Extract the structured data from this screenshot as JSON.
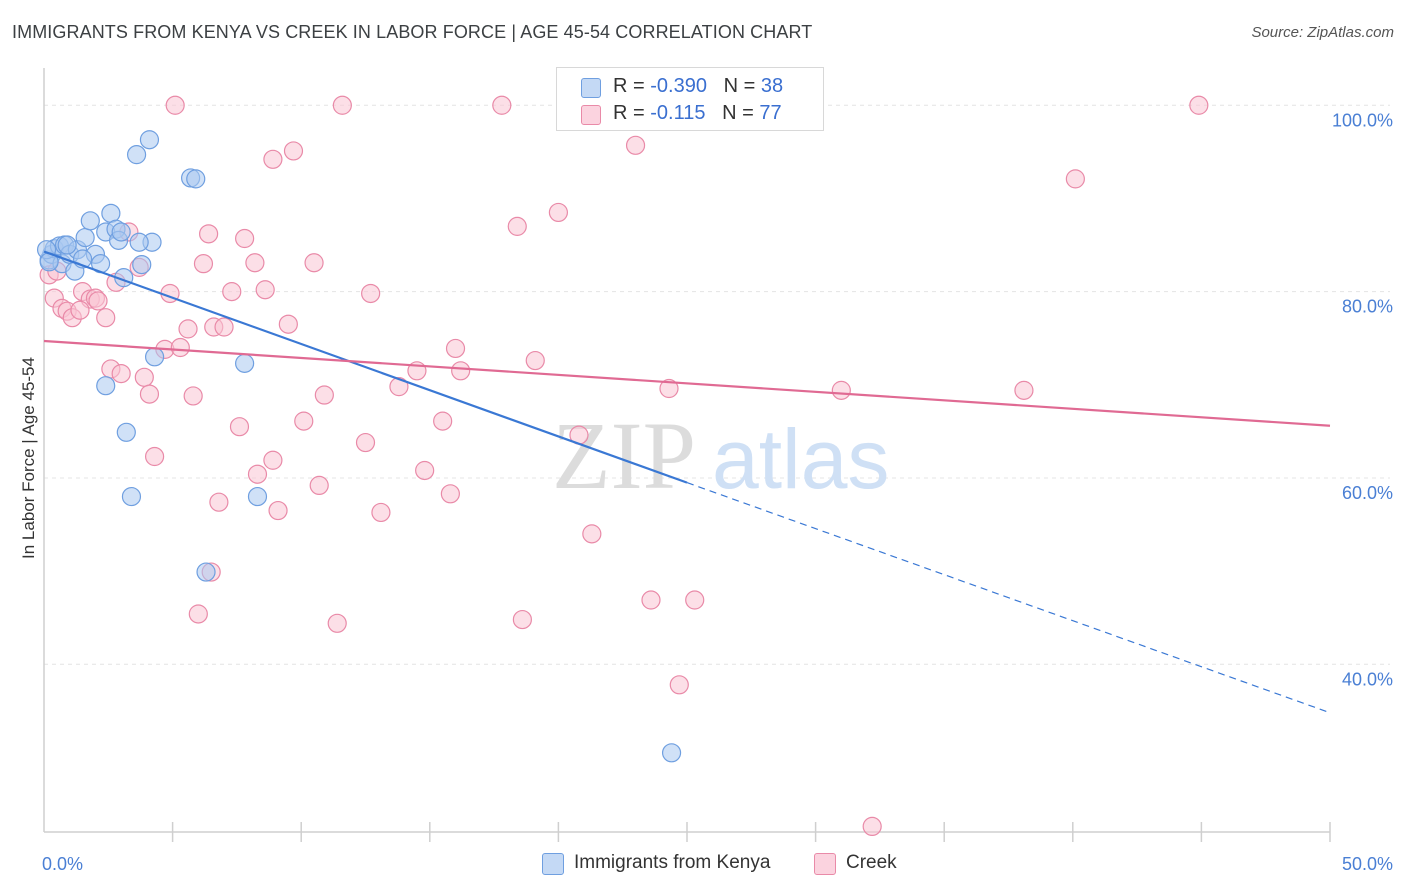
{
  "title": "IMMIGRANTS FROM KENYA VS CREEK IN LABOR FORCE | AGE 45-54 CORRELATION CHART",
  "source": "Source: ZipAtlas.com",
  "watermark": {
    "bold": "ZIP",
    "light": "atlas"
  },
  "legend": {
    "rows": [
      {
        "r_label": "R = ",
        "r_value": "-0.390",
        "n_label": "N = ",
        "n_value": "38",
        "color": "#a9c8f0",
        "border": "#6f9fe0"
      },
      {
        "r_label": "R = ",
        "r_value": "-0.115",
        "n_label": "N = ",
        "n_value": "77",
        "color": "#f9c4d4",
        "border": "#e98aa8"
      }
    ]
  },
  "bottom_legend": [
    {
      "label": "Immigrants from Kenya",
      "color": "#a9c8f0",
      "border": "#6f9fe0"
    },
    {
      "label": "Creek",
      "color": "#f9c4d4",
      "border": "#e98aa8"
    }
  ],
  "chart_data": {
    "type": "scatter",
    "xlabel": "",
    "ylabel": "In Labor Force | Age 45-54",
    "xlim": [
      0,
      50
    ],
    "ylim": [
      22,
      104
    ],
    "x_tick_labels": [
      "0.0%",
      "50.0%"
    ],
    "y_ticks": [
      40,
      60,
      80,
      100
    ],
    "y_tick_labels": [
      "40.0%",
      "60.0%",
      "80.0%",
      "100.0%"
    ],
    "grid": true,
    "series": [
      {
        "name": "Immigrants from Kenya",
        "color": "#6f9fe0",
        "fill": "#a9c8f0",
        "points": [
          [
            0.2,
            83.4
          ],
          [
            0.3,
            84.0
          ],
          [
            0.4,
            84.6
          ],
          [
            0.6,
            84.9
          ],
          [
            0.7,
            83.0
          ],
          [
            0.8,
            85.0
          ],
          [
            1.0,
            84.0
          ],
          [
            1.2,
            82.2
          ],
          [
            1.3,
            84.5
          ],
          [
            1.6,
            85.8
          ],
          [
            1.8,
            87.6
          ],
          [
            2.0,
            84.0
          ],
          [
            2.2,
            83.0
          ],
          [
            2.4,
            69.9
          ],
          [
            2.4,
            86.4
          ],
          [
            2.6,
            88.4
          ],
          [
            2.8,
            86.7
          ],
          [
            2.9,
            85.5
          ],
          [
            3.0,
            86.4
          ],
          [
            3.1,
            81.5
          ],
          [
            3.2,
            64.9
          ],
          [
            3.4,
            58.0
          ],
          [
            3.6,
            94.7
          ],
          [
            3.8,
            82.9
          ],
          [
            4.1,
            96.3
          ],
          [
            4.2,
            85.3
          ],
          [
            4.3,
            73.0
          ],
          [
            5.7,
            92.2
          ],
          [
            5.9,
            92.1
          ],
          [
            6.3,
            49.9
          ],
          [
            7.8,
            72.3
          ],
          [
            8.3,
            58.0
          ],
          [
            24.4,
            30.5
          ],
          [
            0.1,
            84.5
          ],
          [
            0.2,
            83.2
          ],
          [
            1.5,
            83.5
          ],
          [
            0.9,
            85.0
          ],
          [
            3.7,
            85.3
          ]
        ],
        "trend": {
          "x0": 0,
          "y0": 84.3,
          "x1": 25,
          "y1": 59.5,
          "dash_to_x": 50,
          "dash_to_y": 34.8
        }
      },
      {
        "name": "Creek",
        "color": "#e98aa8",
        "fill": "#f9c4d4",
        "points": [
          [
            0.2,
            81.8
          ],
          [
            0.4,
            79.3
          ],
          [
            0.7,
            78.2
          ],
          [
            0.9,
            77.9
          ],
          [
            1.1,
            77.2
          ],
          [
            1.5,
            80.0
          ],
          [
            1.8,
            79.2
          ],
          [
            2.0,
            79.3
          ],
          [
            2.4,
            77.2
          ],
          [
            2.6,
            71.7
          ],
          [
            2.8,
            81.0
          ],
          [
            3.0,
            71.2
          ],
          [
            3.3,
            86.4
          ],
          [
            3.7,
            82.6
          ],
          [
            3.9,
            70.8
          ],
          [
            4.1,
            69.0
          ],
          [
            4.3,
            62.3
          ],
          [
            4.7,
            73.8
          ],
          [
            4.9,
            79.8
          ],
          [
            5.3,
            74.0
          ],
          [
            5.6,
            76.0
          ],
          [
            5.8,
            68.8
          ],
          [
            6.0,
            45.4
          ],
          [
            6.2,
            83.0
          ],
          [
            6.5,
            49.9
          ],
          [
            6.6,
            76.2
          ],
          [
            6.8,
            57.4
          ],
          [
            7.0,
            76.2
          ],
          [
            7.3,
            80.0
          ],
          [
            7.6,
            65.5
          ],
          [
            7.8,
            85.7
          ],
          [
            8.2,
            83.1
          ],
          [
            8.3,
            60.4
          ],
          [
            8.6,
            80.2
          ],
          [
            8.9,
            61.9
          ],
          [
            8.9,
            94.2
          ],
          [
            9.1,
            56.5
          ],
          [
            9.5,
            76.5
          ],
          [
            9.7,
            95.1
          ],
          [
            10.1,
            66.1
          ],
          [
            10.5,
            83.1
          ],
          [
            10.7,
            59.2
          ],
          [
            10.9,
            68.9
          ],
          [
            11.4,
            44.4
          ],
          [
            11.6,
            100.0
          ],
          [
            12.5,
            63.8
          ],
          [
            12.7,
            79.8
          ],
          [
            13.1,
            56.3
          ],
          [
            13.8,
            69.8
          ],
          [
            14.5,
            71.5
          ],
          [
            14.8,
            60.8
          ],
          [
            15.5,
            66.1
          ],
          [
            15.8,
            58.3
          ],
          [
            16.0,
            73.9
          ],
          [
            16.2,
            71.5
          ],
          [
            17.8,
            100.0
          ],
          [
            18.4,
            87.0
          ],
          [
            18.6,
            44.8
          ],
          [
            19.1,
            72.6
          ],
          [
            20.0,
            88.5
          ],
          [
            20.8,
            64.6
          ],
          [
            21.3,
            54.0
          ],
          [
            23.0,
            95.7
          ],
          [
            23.6,
            46.9
          ],
          [
            24.3,
            69.6
          ],
          [
            24.7,
            37.8
          ],
          [
            25.3,
            46.9
          ],
          [
            31.0,
            69.4
          ],
          [
            32.2,
            22.6
          ],
          [
            38.1,
            69.4
          ],
          [
            40.1,
            92.1
          ],
          [
            44.9,
            100.0
          ],
          [
            5.1,
            100.0
          ],
          [
            0.5,
            82.2
          ],
          [
            1.4,
            78.0
          ],
          [
            2.1,
            79.0
          ],
          [
            6.4,
            86.2
          ]
        ],
        "trend": {
          "x0": 0,
          "y0": 74.7,
          "x1": 50,
          "y1": 65.6
        }
      }
    ]
  }
}
